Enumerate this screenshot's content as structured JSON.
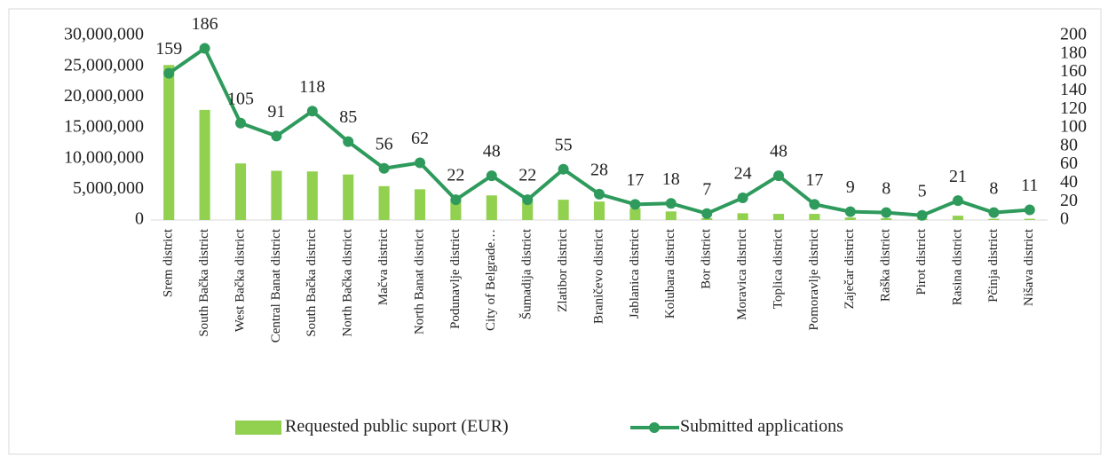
{
  "chart_data": {
    "type": "combo",
    "categories": [
      "Srem district",
      "South Bačka district",
      "West Bačka district",
      "Central Banat district",
      "South Bačka district",
      "North Bačka district",
      "Mačva district",
      "North Banat district",
      "Podunavlje district",
      "City of Belgrade…",
      "Šumadija district",
      "Zlatibor district",
      "Braničevo district",
      "Jablanica district",
      "Kolubara district",
      "Bor district",
      "Moravica district",
      "Toplica district",
      "Pomoravlje district",
      "Zaječar district",
      "Raška district",
      "Pirot district",
      "Rasina district",
      "Pčinja district",
      "Nišava district"
    ],
    "series": [
      {
        "name": "Requested public suport (EUR)",
        "type": "bar",
        "color": "#92d050",
        "values": [
          25200000,
          17900000,
          9200000,
          8000000,
          7900000,
          7400000,
          5500000,
          5000000,
          3200000,
          4000000,
          3000000,
          3300000,
          3000000,
          1900000,
          1400000,
          300000,
          1100000,
          1000000,
          1000000,
          400000,
          300000,
          200000,
          700000,
          200000,
          200000
        ]
      },
      {
        "name": "Submitted applications",
        "type": "line",
        "axis": "y2",
        "color": "#2e9a5c",
        "values": [
          159,
          186,
          105,
          91,
          118,
          85,
          56,
          62,
          22,
          48,
          22,
          55,
          28,
          17,
          18,
          7,
          24,
          48,
          17,
          9,
          8,
          5,
          21,
          8,
          11
        ]
      }
    ],
    "ylim": [
      0,
      30000000
    ],
    "yticks": [
      0,
      {
        "value": 5000000,
        "label": "5,000,000"
      },
      {
        "value": 10000000,
        "label": "10,000,000"
      },
      {
        "value": 15000000,
        "label": "15,000,000"
      },
      {
        "value": 20000000,
        "label": "20,000,000"
      },
      {
        "value": 25000000,
        "label": "25,000,000"
      },
      {
        "value": 30000000,
        "label": "30,000,000"
      }
    ],
    "y2lim": [
      0,
      200
    ],
    "y2ticks": [
      0,
      20,
      40,
      60,
      80,
      100,
      120,
      140,
      160,
      180,
      200
    ],
    "legend": "bottom"
  }
}
